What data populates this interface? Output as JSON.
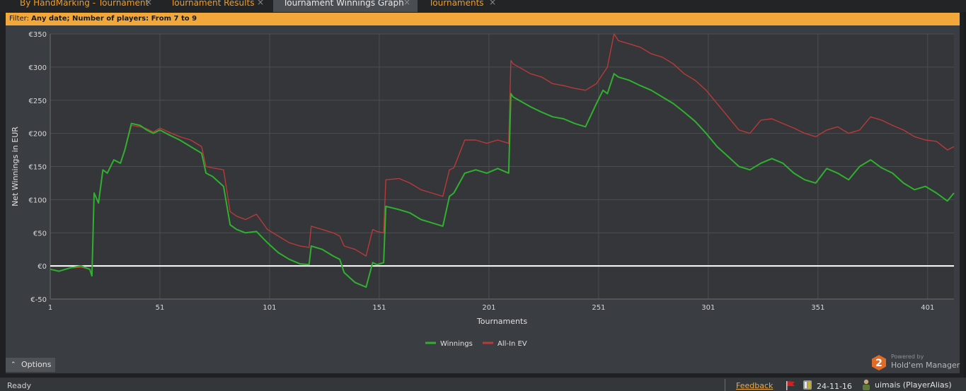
{
  "tabs": [
    {
      "label": "By HandMarking - Tournament",
      "active": false
    },
    {
      "label": "Tournament Results",
      "active": false
    },
    {
      "label": "Tournament Winnings Graph",
      "active": true
    },
    {
      "label": "Tournaments",
      "active": false
    }
  ],
  "tab_close_glyph": "×",
  "filter": {
    "label": "Filter:",
    "value": "Any date; Number of players: From 7 to 9"
  },
  "options_label": "Options",
  "logo": {
    "powered_by": "Powered by",
    "product": "Hold'em Manager",
    "badge_number": "2"
  },
  "status": {
    "ready": "Ready",
    "feedback": "Feedback",
    "date": "24-11-16",
    "user": "uimais (PlayerAlias)"
  },
  "colors": {
    "accent": "#f2a73b",
    "winnings": "#2fb02f",
    "allin_ev": "#b83a3a",
    "zero_line": "#ffffff"
  },
  "icons": [
    "close-icon",
    "chevron-up-icon",
    "flag-icon",
    "database-icon",
    "user-icon",
    "hem-logo-icon"
  ],
  "chart_data": {
    "type": "line",
    "title": "",
    "xlabel": "Tournaments",
    "ylabel": "Net Winnings in EUR",
    "xlim": [
      1,
      413
    ],
    "ylim": [
      -50,
      350
    ],
    "x_ticks": [
      1,
      51,
      101,
      151,
      201,
      251,
      301,
      351,
      401
    ],
    "y_ticks": [
      -50,
      0,
      50,
      100,
      150,
      200,
      250,
      300,
      350
    ],
    "y_tick_labels": [
      "€-50",
      "€0",
      "€50",
      "€100",
      "€150",
      "€200",
      "€250",
      "€300",
      "€350"
    ],
    "grid": true,
    "legend_position": "bottom-center",
    "series": [
      {
        "name": "Winnings",
        "x": [
          1,
          5,
          10,
          15,
          19,
          20,
          21,
          23,
          25,
          27,
          30,
          33,
          35,
          38,
          42,
          45,
          48,
          51,
          55,
          60,
          65,
          70,
          72,
          75,
          80,
          83,
          86,
          90,
          95,
          100,
          105,
          110,
          115,
          119,
          120,
          125,
          130,
          133,
          135,
          140,
          145,
          148,
          150,
          153,
          154,
          160,
          165,
          170,
          175,
          180,
          183,
          185,
          190,
          195,
          200,
          205,
          210,
          211,
          212,
          220,
          225,
          230,
          235,
          240,
          245,
          250,
          253,
          255,
          258,
          260,
          265,
          270,
          275,
          280,
          285,
          290,
          295,
          300,
          305,
          310,
          315,
          320,
          325,
          330,
          335,
          340,
          345,
          350,
          355,
          360,
          365,
          370,
          375,
          380,
          385,
          390,
          395,
          400,
          405,
          410,
          413
        ],
        "y": [
          -5,
          -8,
          -3,
          0,
          -5,
          -15,
          110,
          95,
          145,
          140,
          160,
          155,
          175,
          215,
          212,
          205,
          200,
          205,
          198,
          190,
          180,
          170,
          140,
          135,
          120,
          62,
          55,
          50,
          52,
          35,
          20,
          10,
          3,
          2,
          30,
          25,
          15,
          10,
          -10,
          -25,
          -32,
          5,
          2,
          5,
          90,
          85,
          80,
          70,
          65,
          60,
          105,
          110,
          140,
          145,
          140,
          147,
          140,
          260,
          255,
          240,
          232,
          225,
          222,
          215,
          210,
          245,
          265,
          260,
          290,
          285,
          280,
          272,
          265,
          255,
          245,
          232,
          218,
          200,
          180,
          165,
          150,
          145,
          155,
          162,
          155,
          140,
          130,
          125,
          147,
          140,
          130,
          150,
          160,
          148,
          140,
          125,
          115,
          120,
          110,
          98,
          110
        ]
      },
      {
        "name": "All-In EV",
        "x": [
          1,
          5,
          10,
          15,
          19,
          20,
          21,
          23,
          25,
          27,
          30,
          33,
          35,
          38,
          42,
          45,
          48,
          51,
          55,
          60,
          65,
          70,
          72,
          75,
          80,
          83,
          86,
          90,
          95,
          100,
          105,
          110,
          115,
          119,
          120,
          125,
          130,
          133,
          135,
          140,
          145,
          148,
          150,
          153,
          154,
          160,
          165,
          170,
          175,
          180,
          183,
          185,
          190,
          195,
          200,
          205,
          210,
          211,
          212,
          220,
          225,
          230,
          235,
          240,
          245,
          250,
          253,
          255,
          258,
          260,
          265,
          270,
          275,
          280,
          285,
          290,
          295,
          300,
          305,
          310,
          315,
          320,
          325,
          330,
          335,
          340,
          345,
          350,
          355,
          360,
          365,
          370,
          375,
          380,
          385,
          390,
          395,
          400,
          405,
          410,
          413
        ],
        "y": [
          -5,
          -8,
          -3,
          -2,
          -5,
          -15,
          110,
          95,
          145,
          140,
          160,
          155,
          175,
          212,
          210,
          207,
          202,
          208,
          202,
          195,
          190,
          180,
          150,
          148,
          145,
          82,
          75,
          70,
          78,
          55,
          45,
          35,
          30,
          28,
          60,
          55,
          50,
          45,
          30,
          25,
          15,
          55,
          52,
          50,
          130,
          132,
          125,
          115,
          110,
          105,
          145,
          148,
          190,
          190,
          185,
          190,
          185,
          310,
          305,
          290,
          285,
          275,
          272,
          268,
          265,
          275,
          290,
          300,
          350,
          340,
          335,
          330,
          320,
          315,
          305,
          290,
          280,
          265,
          245,
          225,
          205,
          200,
          220,
          222,
          215,
          208,
          200,
          195,
          205,
          210,
          200,
          205,
          225,
          220,
          212,
          205,
          195,
          190,
          188,
          175,
          180
        ]
      }
    ]
  }
}
